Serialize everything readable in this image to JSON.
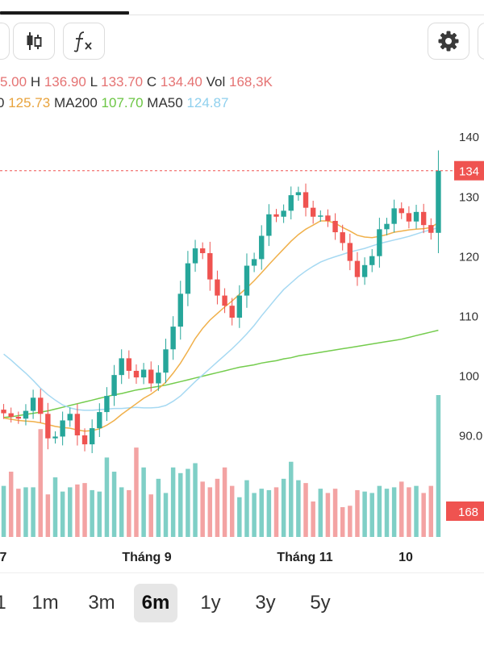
{
  "toolbar": {
    "candles_icon": "candlestick-icon",
    "fx_icon": "function-icon",
    "gear_icon": "gear-icon"
  },
  "ohlc": {
    "o_value": "5.00",
    "h_label": "H",
    "h_value": "136.90",
    "l_label": "L",
    "l_value": "133.70",
    "c_label": "C",
    "c_value": "134.40",
    "vol_label": "Vol",
    "vol_value": "168,3K"
  },
  "ma": {
    "ma20_value": "125.73",
    "ma200_label": "MA200",
    "ma200_value": "107.70",
    "ma50_label": "MA50",
    "ma50_value": "124.87"
  },
  "colors": {
    "up": "#26a69a",
    "down": "#ef5350",
    "vol_up": "#7fcfc6",
    "vol_down": "#f3a3a3",
    "ma20": "#f0b04a",
    "ma50": "#a6d9f2",
    "ma200": "#74cc4d",
    "last_price_tag": "#ef5350"
  },
  "chart_data": {
    "type": "candlestick",
    "y_ticks": [
      "140",
      "130",
      "120",
      "110",
      "100",
      "90.0"
    ],
    "ylim": [
      82,
      143
    ],
    "x_tick_labels": [
      "7",
      "Tháng 9",
      "Tháng 11",
      "10"
    ],
    "last_price_label": "134",
    "last_price": 134.4,
    "volume_label": "168",
    "price_series": [
      93.8,
      93.2,
      92.9,
      94.2,
      96.4,
      93.7,
      89.6,
      89.9,
      92.6,
      93.7,
      90.1,
      88.6,
      91.3,
      94.0,
      96.7,
      100.2,
      103.0,
      100.9,
      99.8,
      101.1,
      98.8,
      100.6,
      104.5,
      108.3,
      113.8,
      118.9,
      121.4,
      120.6,
      116.2,
      113.5,
      111.8,
      109.8,
      113.5,
      118.5,
      119.6,
      123.5,
      127.1,
      126.7,
      127.7,
      130.3,
      130.8,
      128.2,
      126.7,
      126.9,
      126.0,
      124.1,
      122.3,
      119.3,
      116.6,
      118.6,
      120.1,
      124.6,
      125.5,
      128.1,
      127.3,
      125.9,
      127.5,
      125.3,
      124.0,
      134.4
    ],
    "ma20": [
      93.0,
      92.8,
      92.6,
      92.5,
      92.4,
      92.2,
      91.9,
      91.6,
      91.4,
      91.3,
      91.0,
      90.8,
      90.9,
      91.2,
      91.8,
      92.6,
      93.6,
      94.5,
      95.4,
      96.3,
      97.0,
      97.9,
      99.0,
      100.5,
      102.2,
      104.2,
      106.3,
      108.0,
      109.4,
      110.5,
      111.6,
      112.6,
      113.7,
      114.8,
      116.0,
      117.3,
      118.7,
      120.0,
      121.3,
      122.6,
      123.7,
      124.6,
      125.3,
      126.0,
      126.0,
      125.6,
      124.9,
      124.3,
      123.6,
      123.3,
      123.2,
      123.4,
      123.7,
      124.1,
      124.3,
      124.5,
      124.6,
      124.7,
      124.9,
      125.73
    ],
    "ma50": [
      103.7,
      102.7,
      101.6,
      100.5,
      99.3,
      98.0,
      96.9,
      96.0,
      95.2,
      94.7,
      94.4,
      94.3,
      94.3,
      94.4,
      94.5,
      94.6,
      94.6,
      94.7,
      94.8,
      94.7,
      94.7,
      94.8,
      95.1,
      95.8,
      96.7,
      97.9,
      99.1,
      100.2,
      101.3,
      102.4,
      103.5,
      104.6,
      105.8,
      107.1,
      108.5,
      110.1,
      111.6,
      113.1,
      114.5,
      115.6,
      116.7,
      117.6,
      118.4,
      119.1,
      119.6,
      120.0,
      120.4,
      120.8,
      121.1,
      121.4,
      121.8,
      122.2,
      122.5,
      122.8,
      123.1,
      123.4,
      123.8,
      124.2,
      124.5,
      124.87
    ],
    "ma200": [
      93.1,
      93.2,
      93.4,
      93.6,
      93.8,
      94.0,
      94.2,
      94.5,
      94.8,
      95.1,
      95.4,
      95.7,
      96.0,
      96.3,
      96.6,
      96.9,
      97.1,
      97.4,
      97.7,
      97.9,
      98.1,
      98.3,
      98.5,
      98.8,
      99.1,
      99.4,
      99.7,
      100.0,
      100.3,
      100.6,
      100.9,
      101.2,
      101.5,
      101.7,
      101.9,
      102.2,
      102.4,
      102.6,
      102.9,
      103.1,
      103.4,
      103.6,
      103.8,
      104.0,
      104.2,
      104.4,
      104.6,
      104.8,
      105.0,
      105.2,
      105.4,
      105.6,
      105.8,
      106.0,
      106.2,
      106.5,
      106.8,
      107.1,
      107.4,
      107.7
    ],
    "volume_relative": [
      0.36,
      0.46,
      0.34,
      0.35,
      0.35,
      0.76,
      0.3,
      0.42,
      0.32,
      0.35,
      0.37,
      0.38,
      0.33,
      0.32,
      0.56,
      0.46,
      0.35,
      0.33,
      0.63,
      0.49,
      0.3,
      0.41,
      0.31,
      0.49,
      0.45,
      0.48,
      0.52,
      0.39,
      0.35,
      0.41,
      0.49,
      0.36,
      0.28,
      0.4,
      0.31,
      0.34,
      0.33,
      0.35,
      0.41,
      0.53,
      0.4,
      0.38,
      0.25,
      0.34,
      0.31,
      0.34,
      0.21,
      0.22,
      0.33,
      0.32,
      0.31,
      0.36,
      0.34,
      0.35,
      0.39,
      0.35,
      0.36,
      0.31,
      0.36,
      1.0
    ]
  },
  "ranges": {
    "r0": "1",
    "r1": "1m",
    "r2": "3m",
    "r3": "6m",
    "r4": "1y",
    "r5": "3y",
    "r6": "5y",
    "selected": "6m"
  }
}
